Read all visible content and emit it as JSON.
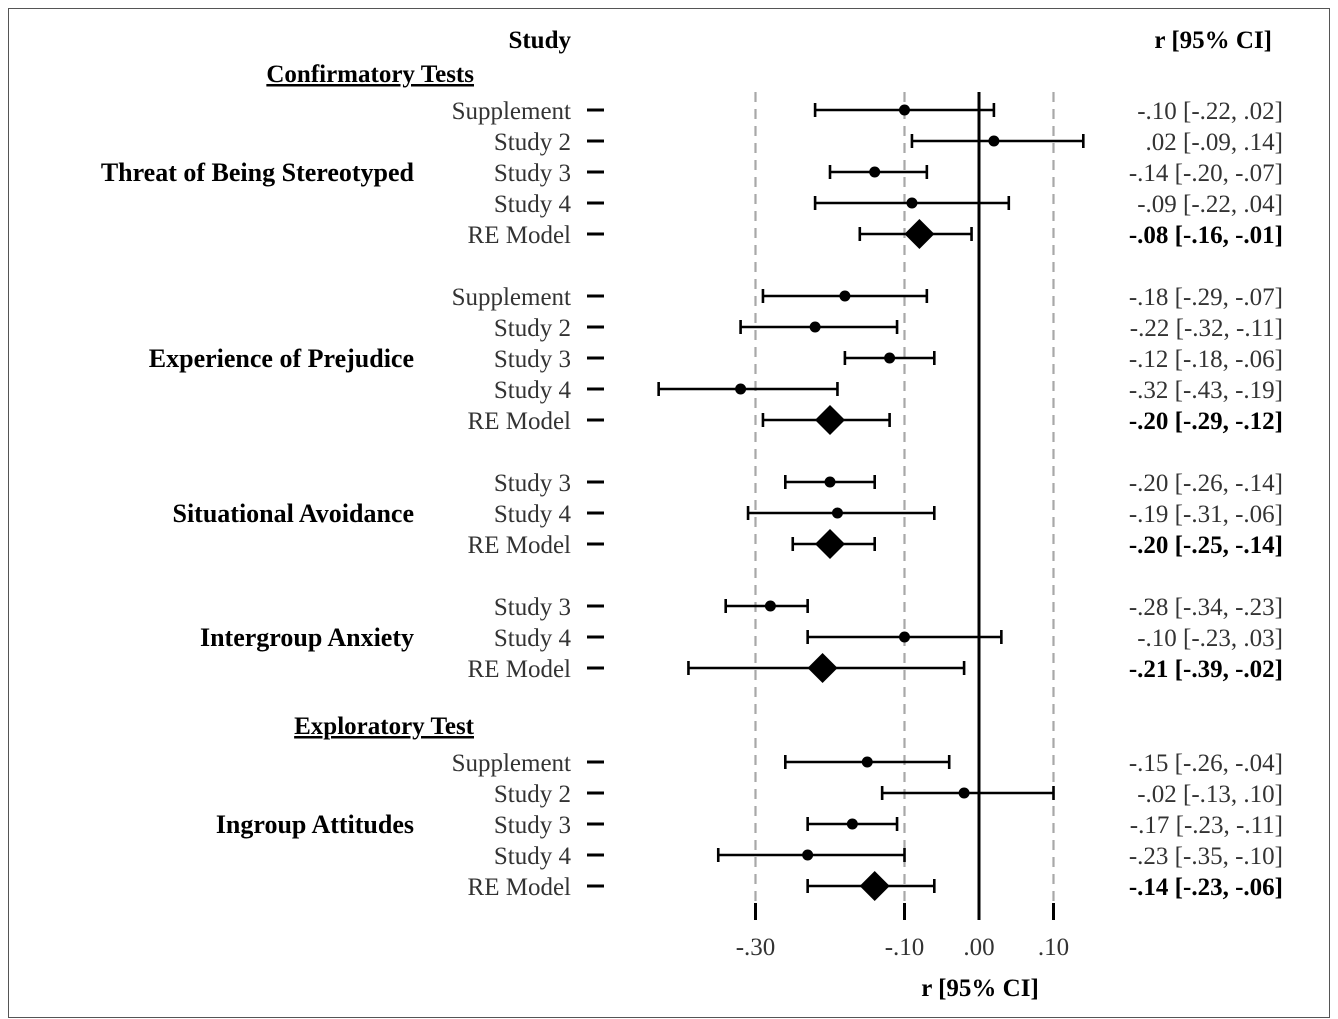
{
  "chart_data": {
    "type": "forest",
    "header": {
      "study_col": "Study",
      "ci_col": "r [95% CI]"
    },
    "xlabel": "r [95% CI]",
    "xlim": [
      -0.43,
      0.14
    ],
    "ref_lines": [
      -0.3,
      -0.1,
      0.1
    ],
    "zero_line": 0.0,
    "ticks": [
      {
        "value": -0.3,
        "label": "-.30"
      },
      {
        "value": -0.1,
        "label": "-.10"
      },
      {
        "value": 0.0,
        "label": ".00"
      },
      {
        "value": 0.1,
        "label": ".10"
      }
    ],
    "sections": [
      {
        "heading": "Confirmatory Tests",
        "groups": [
          {
            "name": "Threat of Being Stereotyped",
            "rows": [
              {
                "label": "Supplement",
                "r": -0.1,
                "lo": -0.22,
                "hi": 0.02,
                "ci_text": "-.10 [-.22, .02]",
                "model": false
              },
              {
                "label": "Study 2",
                "r": 0.02,
                "lo": -0.09,
                "hi": 0.14,
                "ci_text": ".02 [-.09, .14]",
                "model": false
              },
              {
                "label": "Study 3",
                "r": -0.14,
                "lo": -0.2,
                "hi": -0.07,
                "ci_text": "-.14 [-.20, -.07]",
                "model": false
              },
              {
                "label": "Study 4",
                "r": -0.09,
                "lo": -0.22,
                "hi": 0.04,
                "ci_text": "-.09 [-.22, .04]",
                "model": false
              },
              {
                "label": "RE Model",
                "r": -0.08,
                "lo": -0.16,
                "hi": -0.01,
                "ci_text": "-.08 [-.16, -.01]",
                "model": true
              }
            ]
          },
          {
            "name": "Experience of Prejudice",
            "rows": [
              {
                "label": "Supplement",
                "r": -0.18,
                "lo": -0.29,
                "hi": -0.07,
                "ci_text": "-.18 [-.29, -.07]",
                "model": false
              },
              {
                "label": "Study 2",
                "r": -0.22,
                "lo": -0.32,
                "hi": -0.11,
                "ci_text": "-.22 [-.32, -.11]",
                "model": false
              },
              {
                "label": "Study 3",
                "r": -0.12,
                "lo": -0.18,
                "hi": -0.06,
                "ci_text": "-.12 [-.18, -.06]",
                "model": false
              },
              {
                "label": "Study 4",
                "r": -0.32,
                "lo": -0.43,
                "hi": -0.19,
                "ci_text": "-.32 [-.43, -.19]",
                "model": false
              },
              {
                "label": "RE Model",
                "r": -0.2,
                "lo": -0.29,
                "hi": -0.12,
                "ci_text": "-.20 [-.29, -.12]",
                "model": true
              }
            ]
          },
          {
            "name": "Situational Avoidance",
            "rows": [
              {
                "label": "Study 3",
                "r": -0.2,
                "lo": -0.26,
                "hi": -0.14,
                "ci_text": "-.20 [-.26, -.14]",
                "model": false
              },
              {
                "label": "Study 4",
                "r": -0.19,
                "lo": -0.31,
                "hi": -0.06,
                "ci_text": "-.19 [-.31, -.06]",
                "model": false
              },
              {
                "label": "RE Model",
                "r": -0.2,
                "lo": -0.25,
                "hi": -0.14,
                "ci_text": "-.20 [-.25, -.14]",
                "model": true
              }
            ]
          },
          {
            "name": "Intergroup Anxiety",
            "rows": [
              {
                "label": "Study 3",
                "r": -0.28,
                "lo": -0.34,
                "hi": -0.23,
                "ci_text": "-.28 [-.34, -.23]",
                "model": false
              },
              {
                "label": "Study 4",
                "r": -0.1,
                "lo": -0.23,
                "hi": 0.03,
                "ci_text": "-.10 [-.23, .03]",
                "model": false
              },
              {
                "label": "RE Model",
                "r": -0.21,
                "lo": -0.39,
                "hi": -0.02,
                "ci_text": "-.21 [-.39, -.02]",
                "model": true
              }
            ]
          }
        ]
      },
      {
        "heading": "Exploratory Test",
        "groups": [
          {
            "name": "Ingroup Attitudes",
            "rows": [
              {
                "label": "Supplement",
                "r": -0.15,
                "lo": -0.26,
                "hi": -0.04,
                "ci_text": "-.15 [-.26, -.04]",
                "model": false
              },
              {
                "label": "Study 2",
                "r": -0.02,
                "lo": -0.13,
                "hi": 0.1,
                "ci_text": "-.02 [-.13, .10]",
                "model": false
              },
              {
                "label": "Study 3",
                "r": -0.17,
                "lo": -0.23,
                "hi": -0.11,
                "ci_text": "-.17 [-.23, -.11]",
                "model": false
              },
              {
                "label": "Study 4",
                "r": -0.23,
                "lo": -0.35,
                "hi": -0.1,
                "ci_text": "-.23 [-.35, -.10]",
                "model": false
              },
              {
                "label": "RE Model",
                "r": -0.14,
                "lo": -0.23,
                "hi": -0.06,
                "ci_text": "-.14 [-.23, -.06]",
                "model": true
              }
            ]
          }
        ]
      }
    ]
  },
  "colors": {
    "ink": "#000000",
    "label_gray": "#333333",
    "ref_line": "#a8a8a8"
  }
}
